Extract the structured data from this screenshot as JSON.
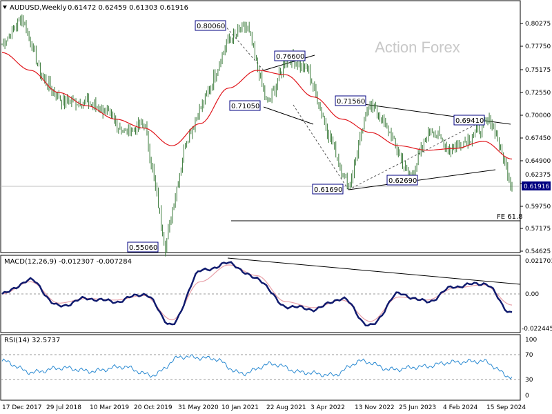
{
  "header": {
    "symbol": "AUDUSD,Weekly",
    "ohlc": "0.61472 0.62459 0.61303 0.61916",
    "watermark": "Action Forex"
  },
  "colors": {
    "candle": "#3a7a3a",
    "ma": "#e0161c",
    "macd_line": "#0f1a6e",
    "macd_signal": "#e8a0a8",
    "rsi": "#2a8ad2",
    "trendline": "#000000",
    "last_price_box": "#000080"
  },
  "price_axis": {
    "ticks": [
      "0.80275",
      "0.77750",
      "0.75175",
      "0.72550",
      "0.70000",
      "0.67450",
      "0.64900",
      "0.62375",
      "0.59750",
      "0.57175",
      "0.54625"
    ],
    "last_price": "0.61916"
  },
  "time_axis": {
    "labels": [
      "17 Dec 2017",
      "29 Jul 2018",
      "10 Mar 2019",
      "20 Oct 2019",
      "31 May 2020",
      "10 Jan 2021",
      "22 Aug 2021",
      "3 Apr 2022",
      "13 Nov 2022",
      "25 Jun 2023",
      "4 Feb 2024",
      "15 Sep 2024"
    ]
  },
  "annotations": {
    "price_labels": [
      "0.80060",
      "0.76600",
      "0.71050",
      "0.71560",
      "0.69410",
      "0.62690",
      "0.61690",
      "0.55060"
    ],
    "fe_label": "FE 61.8"
  },
  "macd": {
    "title": "MACD(12,26,9) -0.012307 -0.007284",
    "ticks": [
      "0.021701",
      "0.00",
      "-0.022445"
    ]
  },
  "rsi": {
    "title": "RSI(14) 32.5737",
    "ticks": [
      "100",
      "70",
      "30",
      "0"
    ]
  },
  "chart_data": {
    "type": "candlestick",
    "instrument": "AUDUSD",
    "timeframe": "Weekly",
    "last_bar": {
      "open": 0.61472,
      "high": 0.62459,
      "low": 0.61303,
      "close": 0.61916
    },
    "price_range": [
      0.5445,
      0.8245
    ],
    "price_path": [
      [
        "17 Dec 2017",
        0.78
      ],
      [
        "late Jan 2018",
        0.81
      ],
      [
        "29 Jul 2018",
        0.74
      ],
      [
        "Sep 2018",
        0.715
      ],
      [
        "Jan 2019",
        0.715
      ],
      [
        "10 Mar 2019",
        0.705
      ],
      [
        "20 Oct 2019",
        0.68
      ],
      [
        "Jan 2020",
        0.69
      ],
      [
        "Mar 2020",
        0.5506
      ],
      [
        "31 May 2020",
        0.67
      ],
      [
        "Aug 2020",
        0.72
      ],
      [
        "10 Jan 2021",
        0.78
      ],
      [
        "Feb 2021",
        0.8006
      ],
      [
        "22 Aug 2021",
        0.7105
      ],
      [
        "Oct 2021",
        0.766
      ],
      [
        "3 Apr 2022",
        0.75
      ],
      [
        "Jul 2022",
        0.68
      ],
      [
        "13 Oct 2022",
        0.6169
      ],
      [
        "Feb 2023",
        0.7156
      ],
      [
        "25 Jun 2023",
        0.68
      ],
      [
        "Oct 2023",
        0.6269
      ],
      [
        "Dec 2023",
        0.685
      ],
      [
        "4 Feb 2024",
        0.66
      ],
      [
        "Jul 2024",
        0.675
      ],
      [
        "Sep 2024",
        0.6941
      ],
      [
        "end",
        0.6192
      ]
    ],
    "labelled_levels": [
      0.8006,
      0.766,
      0.7105,
      0.7156,
      0.6941,
      0.6269,
      0.6169,
      0.5506
    ],
    "fe_618_level": 0.582,
    "ma_path": [
      0.77,
      0.75,
      0.725,
      0.71,
      0.695,
      0.685,
      0.665,
      0.69,
      0.73,
      0.75,
      0.745,
      0.72,
      0.695,
      0.68,
      0.665,
      0.66,
      0.662,
      0.67,
      0.65
    ],
    "macd_range": [
      -0.0245,
      0.023
    ],
    "macd_path": [
      0.0,
      0.009,
      -0.008,
      -0.003,
      -0.005,
      0.0,
      -0.02,
      0.015,
      0.02,
      0.01,
      -0.008,
      -0.01,
      -0.003,
      -0.021,
      0.0,
      -0.005,
      0.005,
      0.007,
      -0.012
    ],
    "signal_path": [
      0.0,
      0.008,
      -0.006,
      -0.003,
      -0.004,
      -0.001,
      -0.017,
      0.008,
      0.019,
      0.012,
      -0.005,
      -0.009,
      -0.004,
      -0.018,
      -0.002,
      -0.004,
      0.004,
      0.006,
      -0.0073
    ],
    "rsi_path": [
      60,
      40,
      48,
      42,
      50,
      35,
      68,
      65,
      38,
      55,
      40,
      35,
      60,
      45,
      50,
      58,
      60,
      32
    ]
  }
}
